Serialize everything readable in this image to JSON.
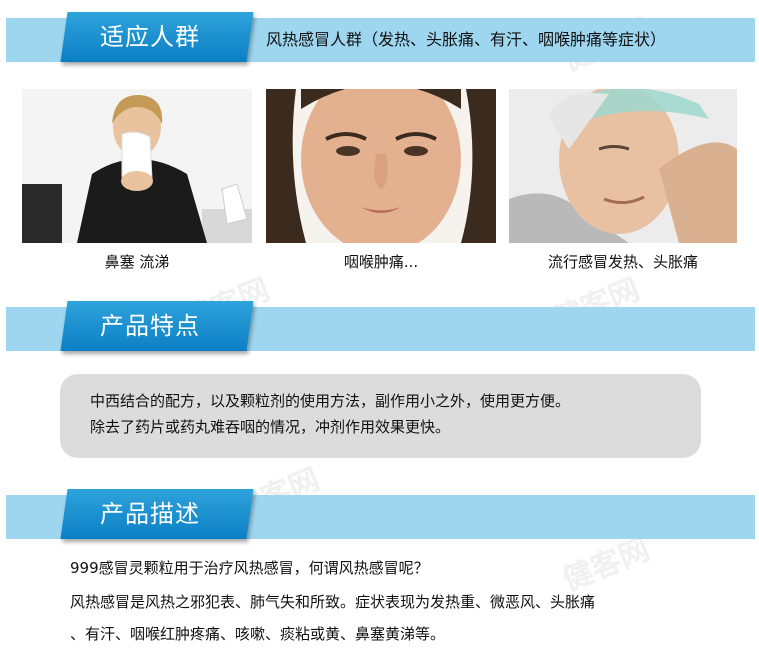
{
  "section1": {
    "tab_label": "适应人群",
    "caption": "风热感冒人群（发热、头胀痛、有汗、咽喉肿痛等症状）"
  },
  "photos": [
    {
      "caption": "鼻塞  流涕",
      "icon": "woman-sneezing-photo"
    },
    {
      "caption": "咽喉肿痛...",
      "icon": "woman-sore-throat-photo"
    },
    {
      "caption": "流行感冒发热、头胀痛",
      "icon": "man-fever-photo"
    }
  ],
  "section2": {
    "tab_label": "产品特点",
    "line1": "中西结合的配方，以及颗粒剂的使用方法，副作用小之外，使用更方便。",
    "line2": "除去了药片或药丸难吞咽的情况，冲剂作用效果更快。"
  },
  "section3": {
    "tab_label": "产品描述",
    "line1": "999感冒灵颗粒用于治疗风热感冒，何谓风热感冒呢？",
    "line2": "风热感冒是风热之邪犯表、肺气失和所致。症状表现为发热重、微恶风、头胀痛",
    "line3": "、有汗、咽喉红肿疼痛、咳嗽、痰粘或黄、鼻塞黄涕等。"
  },
  "colors": {
    "bar": "#9ed6f0",
    "tab": "#0b7fc4",
    "feature_box": "#dcdcdc"
  }
}
